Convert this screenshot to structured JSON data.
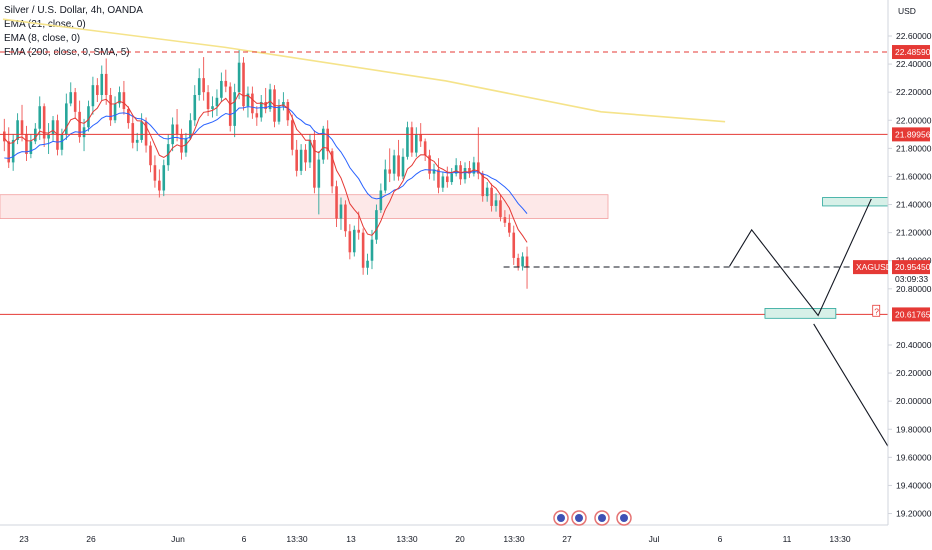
{
  "legend": {
    "title": "Silver / U.S. Dollar, 4h, OANDA",
    "indicators": [
      "EMA (21, close, 0)",
      "EMA (8, close, 0)",
      "EMA (200, close, 0, SMA, 5)"
    ]
  },
  "colors": {
    "up": "#26a69a",
    "down": "#ef5350",
    "ema21": "#2962ff",
    "ema8": "#e53935",
    "ema200": "#f5e38a",
    "level": "#e53935",
    "zone_fill": "#fde8e8",
    "target_fill": "#d7f0e8",
    "target_stroke": "#26a69a",
    "axis_text": "#131722",
    "tag": "#e53935"
  },
  "chart_data": {
    "type": "candlestick",
    "symbol": "XAGUSD",
    "interval": "4h",
    "y_axis": {
      "unit": "USD",
      "min": 19.2,
      "max": 22.75,
      "ticks": [
        "22.60000",
        "22.40000",
        "22.20000",
        "22.00000",
        "21.80000",
        "21.60000",
        "21.40000",
        "21.20000",
        "21.00000",
        "20.80000",
        "20.40000",
        "20.20000",
        "20.00000",
        "19.80000",
        "19.60000",
        "19.40000",
        "19.20000"
      ]
    },
    "x_axis": {
      "ticks": [
        "23",
        "26",
        "Jun",
        "6",
        "13:30",
        "13",
        "13:30",
        "20",
        "13:30",
        "27",
        "Jul",
        "6",
        "11",
        "13:30"
      ]
    },
    "ohlc": [
      [
        21.92,
        22.01,
        21.78,
        21.85
      ],
      [
        21.85,
        21.95,
        21.66,
        21.7
      ],
      [
        21.7,
        21.9,
        21.64,
        21.86
      ],
      [
        21.86,
        22.05,
        21.83,
        22.0
      ],
      [
        22.0,
        22.11,
        21.85,
        21.9
      ],
      [
        21.9,
        21.96,
        21.71,
        21.76
      ],
      [
        21.76,
        21.9,
        21.73,
        21.85
      ],
      [
        21.85,
        21.98,
        21.83,
        21.94
      ],
      [
        21.94,
        22.17,
        21.86,
        22.1
      ],
      [
        22.1,
        22.12,
        21.81,
        21.87
      ],
      [
        21.87,
        21.98,
        21.76,
        21.9
      ],
      [
        21.9,
        22.03,
        21.85,
        22.0
      ],
      [
        22.0,
        22.04,
        21.75,
        21.79
      ],
      [
        21.79,
        21.94,
        21.75,
        21.9
      ],
      [
        21.9,
        22.19,
        21.86,
        22.12
      ],
      [
        22.12,
        22.27,
        22.1,
        22.2
      ],
      [
        22.2,
        22.23,
        22.01,
        22.06
      ],
      [
        22.06,
        22.14,
        21.84,
        21.88
      ],
      [
        21.88,
        22.01,
        21.78,
        21.95
      ],
      [
        21.95,
        22.14,
        21.92,
        22.1
      ],
      [
        22.1,
        22.31,
        22.04,
        22.25
      ],
      [
        22.25,
        22.3,
        22.13,
        22.18
      ],
      [
        22.18,
        22.39,
        22.14,
        22.33
      ],
      [
        22.33,
        22.44,
        22.11,
        22.18
      ],
      [
        22.18,
        22.23,
        21.96,
        22.0
      ],
      [
        22.0,
        22.17,
        21.98,
        22.12
      ],
      [
        22.12,
        22.24,
        22.09,
        22.2
      ],
      [
        22.2,
        22.28,
        22.04,
        22.08
      ],
      [
        22.08,
        22.1,
        21.94,
        21.98
      ],
      [
        21.98,
        22.03,
        21.8,
        21.84
      ],
      [
        21.84,
        21.91,
        21.78,
        21.86
      ],
      [
        21.86,
        22.05,
        21.84,
        21.99
      ],
      [
        21.99,
        22.02,
        21.77,
        21.82
      ],
      [
        21.82,
        21.85,
        21.63,
        21.68
      ],
      [
        21.68,
        21.75,
        21.52,
        21.57
      ],
      [
        21.57,
        21.65,
        21.45,
        21.5
      ],
      [
        21.5,
        21.72,
        21.46,
        21.68
      ],
      [
        21.68,
        21.9,
        21.64,
        21.83
      ],
      [
        21.83,
        22.02,
        21.78,
        21.97
      ],
      [
        21.97,
        22.08,
        21.85,
        21.9
      ],
      [
        21.9,
        21.94,
        21.72,
        21.77
      ],
      [
        21.77,
        21.91,
        21.74,
        21.87
      ],
      [
        21.87,
        22.05,
        21.86,
        22.0
      ],
      [
        22.0,
        22.25,
        21.96,
        22.18
      ],
      [
        22.18,
        22.37,
        22.14,
        22.3
      ],
      [
        22.3,
        22.45,
        22.14,
        22.2
      ],
      [
        22.2,
        22.25,
        22.03,
        22.08
      ],
      [
        22.08,
        22.17,
        22.02,
        22.1
      ],
      [
        22.1,
        22.22,
        22.03,
        22.16
      ],
      [
        22.16,
        22.34,
        22.13,
        22.28
      ],
      [
        22.28,
        22.36,
        22.2,
        22.24
      ],
      [
        22.24,
        22.27,
        21.92,
        21.96
      ],
      [
        21.96,
        22.26,
        21.88,
        22.2
      ],
      [
        22.2,
        22.5,
        22.15,
        22.41
      ],
      [
        22.41,
        22.45,
        22.07,
        22.1
      ],
      [
        22.1,
        22.24,
        22.02,
        22.19
      ],
      [
        22.19,
        22.24,
        22.01,
        22.05
      ],
      [
        22.05,
        22.1,
        21.96,
        22.02
      ],
      [
        22.02,
        22.18,
        21.99,
        22.13
      ],
      [
        22.13,
        22.23,
        22.05,
        22.08
      ],
      [
        22.08,
        22.26,
        22.06,
        22.22
      ],
      [
        22.22,
        22.25,
        21.95,
        21.99
      ],
      [
        21.99,
        22.15,
        21.97,
        22.1
      ],
      [
        22.1,
        22.2,
        22.07,
        22.13
      ],
      [
        22.13,
        22.15,
        21.96,
        22.0
      ],
      [
        22.0,
        22.04,
        21.75,
        21.79
      ],
      [
        21.79,
        21.86,
        21.6,
        21.64
      ],
      [
        21.64,
        21.83,
        21.61,
        21.79
      ],
      [
        21.79,
        21.83,
        21.64,
        21.7
      ],
      [
        21.7,
        21.9,
        21.66,
        21.86
      ],
      [
        21.86,
        21.93,
        21.48,
        21.52
      ],
      [
        21.52,
        21.78,
        21.33,
        21.72
      ],
      [
        21.72,
        21.96,
        21.69,
        21.94
      ],
      [
        21.94,
        22.0,
        21.72,
        21.78
      ],
      [
        21.78,
        21.8,
        21.48,
        21.53
      ],
      [
        21.53,
        21.57,
        21.24,
        21.3
      ],
      [
        21.3,
        21.45,
        21.22,
        21.4
      ],
      [
        21.4,
        21.43,
        21.17,
        21.21
      ],
      [
        21.21,
        21.26,
        21.01,
        21.06
      ],
      [
        21.06,
        21.25,
        21.03,
        21.22
      ],
      [
        21.22,
        21.35,
        21.15,
        21.2
      ],
      [
        21.2,
        21.23,
        20.9,
        20.95
      ],
      [
        20.95,
        21.05,
        20.9,
        21.0
      ],
      [
        21.0,
        21.22,
        20.94,
        21.15
      ],
      [
        21.15,
        21.4,
        21.12,
        21.36
      ],
      [
        21.36,
        21.55,
        21.34,
        21.5
      ],
      [
        21.5,
        21.72,
        21.48,
        21.65
      ],
      [
        21.65,
        21.8,
        21.56,
        21.62
      ],
      [
        21.62,
        21.79,
        21.57,
        21.75
      ],
      [
        21.75,
        21.86,
        21.57,
        21.6
      ],
      [
        21.6,
        21.8,
        21.58,
        21.74
      ],
      [
        21.74,
        21.99,
        21.72,
        21.95
      ],
      [
        21.95,
        21.99,
        21.74,
        21.77
      ],
      [
        21.77,
        21.95,
        21.74,
        21.9
      ],
      [
        21.9,
        21.98,
        21.81,
        21.85
      ],
      [
        21.85,
        21.87,
        21.71,
        21.75
      ],
      [
        21.75,
        21.79,
        21.58,
        21.62
      ],
      [
        21.62,
        21.69,
        21.57,
        21.65
      ],
      [
        21.65,
        21.73,
        21.48,
        21.52
      ],
      [
        21.52,
        21.63,
        21.49,
        21.6
      ],
      [
        21.6,
        21.67,
        21.52,
        21.56
      ],
      [
        21.56,
        21.66,
        21.54,
        21.62
      ],
      [
        21.62,
        21.73,
        21.6,
        21.68
      ],
      [
        21.68,
        21.71,
        21.54,
        21.58
      ],
      [
        21.58,
        21.7,
        21.55,
        21.66
      ],
      [
        21.66,
        21.71,
        21.59,
        21.62
      ],
      [
        21.62,
        21.74,
        21.6,
        21.7
      ],
      [
        21.7,
        21.95,
        21.58,
        21.62
      ],
      [
        21.62,
        21.64,
        21.42,
        21.46
      ],
      [
        21.46,
        21.56,
        21.42,
        21.52
      ],
      [
        21.52,
        21.55,
        21.35,
        21.39
      ],
      [
        21.39,
        21.48,
        21.35,
        21.43
      ],
      [
        21.43,
        21.47,
        21.28,
        21.31
      ],
      [
        21.31,
        21.36,
        21.24,
        21.27
      ],
      [
        21.27,
        21.33,
        21.17,
        21.2
      ],
      [
        21.2,
        21.25,
        20.97,
        21.02
      ],
      [
        21.02,
        21.05,
        20.93,
        20.96
      ],
      [
        20.96,
        21.06,
        20.93,
        21.03
      ],
      [
        21.03,
        21.1,
        20.8,
        20.96
      ]
    ],
    "ema21_start": 21.72,
    "ema8_start": 21.88,
    "ema200": [
      [
        0,
        22.72
      ],
      [
        50,
        22.52
      ],
      [
        100,
        22.28
      ],
      [
        135,
        22.06
      ],
      [
        163,
        21.99
      ]
    ],
    "levels": [
      {
        "price": 22.4859,
        "label": "22.48590",
        "style": "dashed"
      },
      {
        "price": 21.89956,
        "label": "21.89956",
        "style": "solid"
      },
      {
        "price": 20.61765,
        "label": "20.61765",
        "style": "solid"
      }
    ],
    "last_price": {
      "symbol": "XAGUSD",
      "price": "20.95450",
      "countdown": "03:09:33"
    },
    "resistance_zone": {
      "top": 21.47,
      "bottom": 21.3
    },
    "support_dash": {
      "price": 20.955,
      "from_bar": 113,
      "to_bar": 229
    },
    "target_boxes": [
      {
        "top": 21.45,
        "bottom": 21.39,
        "from_bar": 185,
        "to_bar": 204
      },
      {
        "top": 20.66,
        "bottom": 20.59,
        "from_bar": 172,
        "to_bar": 188
      }
    ],
    "projection_path": [
      [
        164,
        20.96
      ],
      [
        169,
        21.22
      ],
      [
        184,
        20.61
      ],
      [
        196,
        21.44
      ]
    ],
    "projection_path2": [
      [
        183,
        20.55
      ],
      [
        208,
        19.25
      ]
    ],
    "question_mark": {
      "text": "?",
      "bar": 197,
      "price": 20.64
    },
    "event_icons": 4
  }
}
